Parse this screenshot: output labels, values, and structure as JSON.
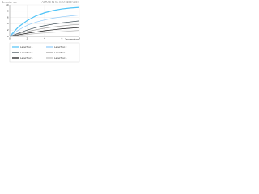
{
  "chart_data": {
    "type": "line",
    "title": "Corrosion rate",
    "subtitle": "ASTM G 31-95, 0.5M H2SO4, 20 h",
    "x_label": "Temperature",
    "x": [
      0,
      1,
      2,
      3,
      4,
      5,
      6,
      7,
      8
    ],
    "xlim": [
      0,
      8
    ],
    "xticks": [
      0,
      2,
      4,
      6,
      8
    ],
    "ylim": [
      0,
      10
    ],
    "yticks": [
      0,
      2,
      4,
      6,
      8,
      10
    ],
    "grid": true,
    "series": [
      {
        "name": "LabelText 1",
        "color": "#4fc3f7",
        "values": [
          0,
          3,
          5,
          6.5,
          7.5,
          8.2,
          8.7,
          9,
          9.2
        ]
      },
      {
        "name": "LabelText 2",
        "color": "#90caf9",
        "values": [
          0,
          2,
          3.5,
          4.5,
          5.2,
          5.8,
          6.2,
          6.5,
          6.8
        ]
      },
      {
        "name": "LabelText 3",
        "color": "#37474f",
        "values": [
          0,
          1,
          2,
          2.8,
          3.4,
          3.9,
          4.3,
          4.6,
          4.9
        ]
      },
      {
        "name": "LabelText 4",
        "color": "#9e9e9e",
        "values": [
          0,
          0.8,
          1.5,
          2.1,
          2.6,
          3,
          3.3,
          3.6,
          3.8
        ]
      },
      {
        "name": "LabelText 5",
        "color": "#111111",
        "values": [
          0,
          0.5,
          1,
          1.4,
          1.8,
          2.1,
          2.4,
          2.6,
          2.8
        ]
      },
      {
        "name": "LabelText 6",
        "color": "#bdbdbd",
        "values": [
          0,
          0.3,
          0.6,
          0.9,
          1.1,
          1.3,
          1.5,
          1.7,
          1.9
        ]
      }
    ]
  }
}
